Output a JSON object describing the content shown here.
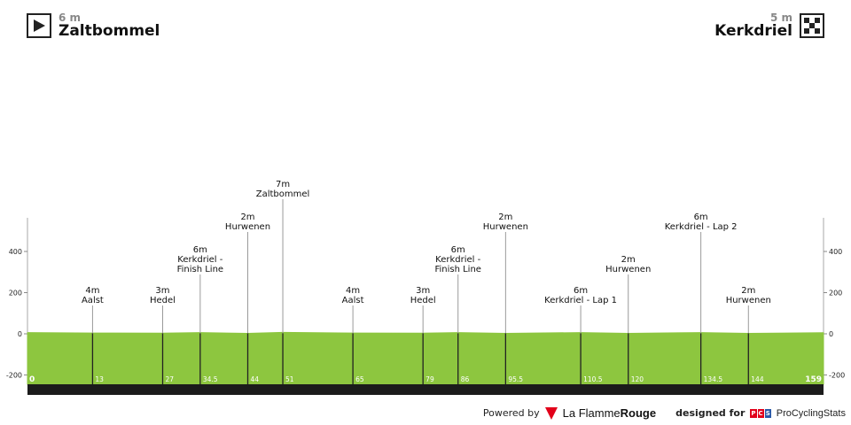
{
  "start": {
    "elevation": "6 m",
    "name": "Zaltbommel",
    "icon": "play-icon"
  },
  "finish": {
    "elevation": "5 m",
    "name": "Kerkdriel",
    "icon": "checkered-flag-icon"
  },
  "footer": {
    "powered_by": "Powered by",
    "brand_la": "La Flamme",
    "brand_rouge": "Rouge",
    "designed_for": "designed for",
    "pcs_badge": [
      "P",
      "C",
      "S"
    ],
    "pcs_name": "ProCyclingStats"
  },
  "colors": {
    "profile_fill": "#8dc63f",
    "base_bar": "#1b1b1b",
    "brand_red": "#e2001a",
    "badge_blue": "#2a5aa8"
  },
  "chart_data": {
    "type": "area",
    "xlabel": "",
    "ylabel": "",
    "xlim": [
      0,
      159
    ],
    "ylim": [
      -200,
      400
    ],
    "y_ticks": [
      -200,
      0,
      200,
      400
    ],
    "x_start_label": "0",
    "x_end_label": "159",
    "grid": false,
    "profile": {
      "x": [
        0,
        13,
        27,
        34.5,
        44,
        51,
        65,
        79,
        86,
        95.5,
        110.5,
        120,
        134.5,
        144,
        159
      ],
      "y": [
        6,
        4,
        3,
        6,
        2,
        7,
        4,
        3,
        6,
        2,
        6,
        2,
        6,
        2,
        5
      ]
    },
    "waypoints": [
      {
        "km": 13,
        "km_label": "13",
        "elev": "4m",
        "name": [
          "Aalst"
        ],
        "label_level": 0
      },
      {
        "km": 27,
        "km_label": "27",
        "elev": "3m",
        "name": [
          "Hedel"
        ],
        "label_level": 0
      },
      {
        "km": 34.5,
        "km_label": "34.5",
        "elev": "6m",
        "name": [
          "Kerkdriel -",
          "Finish Line"
        ],
        "label_level": 1
      },
      {
        "km": 44,
        "km_label": "44",
        "elev": "2m",
        "name": [
          "Hurwenen"
        ],
        "label_level": 2
      },
      {
        "km": 51,
        "km_label": "51",
        "elev": "7m",
        "name": [
          "Zaltbommel"
        ],
        "label_level": 3
      },
      {
        "km": 65,
        "km_label": "65",
        "elev": "4m",
        "name": [
          "Aalst"
        ],
        "label_level": 0
      },
      {
        "km": 79,
        "km_label": "79",
        "elev": "3m",
        "name": [
          "Hedel"
        ],
        "label_level": 0
      },
      {
        "km": 86,
        "km_label": "86",
        "elev": "6m",
        "name": [
          "Kerkdriel -",
          "Finish Line"
        ],
        "label_level": 1
      },
      {
        "km": 95.5,
        "km_label": "95.5",
        "elev": "2m",
        "name": [
          "Hurwenen"
        ],
        "label_level": 2
      },
      {
        "km": 110.5,
        "km_label": "110.5",
        "elev": "6m",
        "name": [
          "Kerkdriel - Lap 1"
        ],
        "label_level": 0
      },
      {
        "km": 120,
        "km_label": "120",
        "elev": "2m",
        "name": [
          "Hurwenen"
        ],
        "label_level": 1
      },
      {
        "km": 134.5,
        "km_label": "134.5",
        "elev": "6m",
        "name": [
          "Kerkdriel - Lap 2"
        ],
        "label_level": 2
      },
      {
        "km": 144,
        "km_label": "144",
        "elev": "2m",
        "name": [
          "Hurwenen"
        ],
        "label_level": 0
      }
    ]
  }
}
